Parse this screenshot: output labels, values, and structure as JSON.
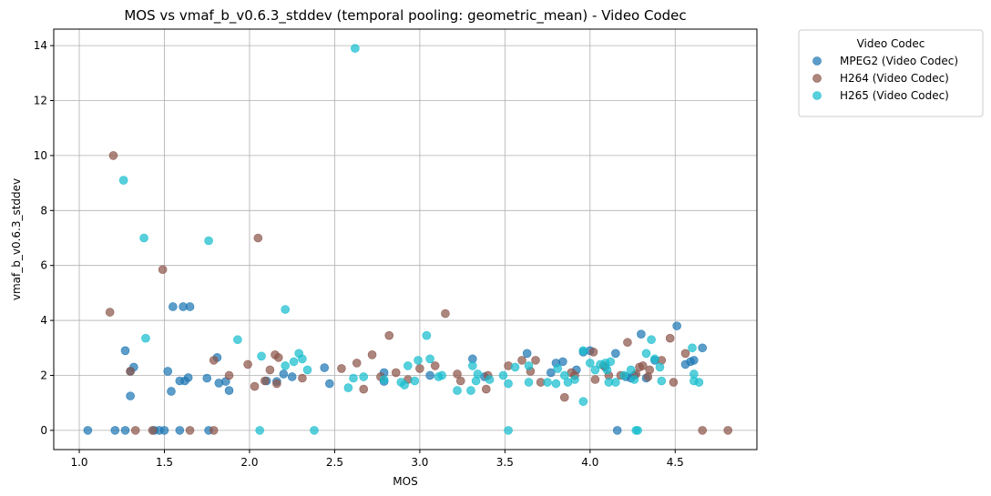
{
  "chart_data": {
    "type": "scatter",
    "title": "MOS vs vmaf_b_v0.6.3_stddev (temporal pooling: geometric_mean) - Video Codec",
    "xlabel": "MOS",
    "ylabel": "vmaf_b_v0.6.3_stddev",
    "xlim": [
      0.85,
      4.98
    ],
    "ylim": [
      -0.7,
      14.6
    ],
    "xticks": [
      1.0,
      1.5,
      2.0,
      2.5,
      3.0,
      3.5,
      4.0,
      4.5
    ],
    "xtick_labels": [
      "1.0",
      "1.5",
      "2.0",
      "2.5",
      "3.0",
      "3.5",
      "4.0",
      "4.5"
    ],
    "yticks": [
      0,
      2,
      4,
      6,
      8,
      10,
      12,
      14
    ],
    "ytick_labels": [
      "0",
      "2",
      "4",
      "6",
      "8",
      "10",
      "12",
      "14"
    ],
    "grid": true,
    "legend": {
      "title": "Video Codec",
      "placement": "outside-top-right"
    },
    "series": [
      {
        "name": "MPEG2 (Video Codec)",
        "color": "#1f77b4",
        "points": [
          [
            1.05,
            0.0
          ],
          [
            1.21,
            0.0
          ],
          [
            1.27,
            0.0
          ],
          [
            1.27,
            2.9
          ],
          [
            1.3,
            1.25
          ],
          [
            1.32,
            2.3
          ],
          [
            1.3,
            2.15
          ],
          [
            1.44,
            0.0
          ],
          [
            1.47,
            0.0
          ],
          [
            1.5,
            0.0
          ],
          [
            1.52,
            2.15
          ],
          [
            1.54,
            1.42
          ],
          [
            1.55,
            4.5
          ],
          [
            1.59,
            1.8
          ],
          [
            1.59,
            0.0
          ],
          [
            1.61,
            4.5
          ],
          [
            1.62,
            1.8
          ],
          [
            1.65,
            4.5
          ],
          [
            1.64,
            1.92
          ],
          [
            1.75,
            1.9
          ],
          [
            1.76,
            0.0
          ],
          [
            1.81,
            2.65
          ],
          [
            1.82,
            1.72
          ],
          [
            1.86,
            1.78
          ],
          [
            1.88,
            1.45
          ],
          [
            2.1,
            1.8
          ],
          [
            2.16,
            1.78
          ],
          [
            2.2,
            2.05
          ],
          [
            2.25,
            1.95
          ],
          [
            2.44,
            2.28
          ],
          [
            2.47,
            1.7
          ],
          [
            2.79,
            1.78
          ],
          [
            2.79,
            2.1
          ],
          [
            3.06,
            2.0
          ],
          [
            3.31,
            2.6
          ],
          [
            3.38,
            1.95
          ],
          [
            3.63,
            2.8
          ],
          [
            3.77,
            2.1
          ],
          [
            3.8,
            2.45
          ],
          [
            3.84,
            2.5
          ],
          [
            3.92,
            2.2
          ],
          [
            3.96,
            2.85
          ],
          [
            4.0,
            2.9
          ],
          [
            4.09,
            2.3
          ],
          [
            4.15,
            2.8
          ],
          [
            4.16,
            0.0
          ],
          [
            4.21,
            1.95
          ],
          [
            4.26,
            2.0
          ],
          [
            4.3,
            3.5
          ],
          [
            4.33,
            1.9
          ],
          [
            4.38,
            2.55
          ],
          [
            4.51,
            3.8
          ],
          [
            4.56,
            2.4
          ],
          [
            4.59,
            2.5
          ],
          [
            4.61,
            2.55
          ],
          [
            4.66,
            3.0
          ],
          [
            4.24,
            1.9
          ]
        ]
      },
      {
        "name": "H264 (Video Codec)",
        "color": "#8c564b",
        "points": [
          [
            1.18,
            4.3
          ],
          [
            1.2,
            10.0
          ],
          [
            1.3,
            2.15
          ],
          [
            1.33,
            0.0
          ],
          [
            1.43,
            0.0
          ],
          [
            1.49,
            5.85
          ],
          [
            1.65,
            0.0
          ],
          [
            1.79,
            2.55
          ],
          [
            1.79,
            0.0
          ],
          [
            1.88,
            2.0
          ],
          [
            1.99,
            2.4
          ],
          [
            2.03,
            1.6
          ],
          [
            2.05,
            7.0
          ],
          [
            2.09,
            1.8
          ],
          [
            2.12,
            2.2
          ],
          [
            2.15,
            2.75
          ],
          [
            2.17,
            2.65
          ],
          [
            2.16,
            1.7
          ],
          [
            2.31,
            1.9
          ],
          [
            2.54,
            2.25
          ],
          [
            2.63,
            2.45
          ],
          [
            2.67,
            1.5
          ],
          [
            2.72,
            2.75
          ],
          [
            2.77,
            1.95
          ],
          [
            2.82,
            3.45
          ],
          [
            2.86,
            2.1
          ],
          [
            2.93,
            1.85
          ],
          [
            3.0,
            2.25
          ],
          [
            3.09,
            2.35
          ],
          [
            3.15,
            4.25
          ],
          [
            3.22,
            2.05
          ],
          [
            3.24,
            1.8
          ],
          [
            3.4,
            2.0
          ],
          [
            3.39,
            1.5
          ],
          [
            3.52,
            2.35
          ],
          [
            3.6,
            2.55
          ],
          [
            3.65,
            2.15
          ],
          [
            3.68,
            2.55
          ],
          [
            3.71,
            1.75
          ],
          [
            3.85,
            1.2
          ],
          [
            3.89,
            2.1
          ],
          [
            3.91,
            2.0
          ],
          [
            4.02,
            2.85
          ],
          [
            4.03,
            1.85
          ],
          [
            4.08,
            2.35
          ],
          [
            4.11,
            2.0
          ],
          [
            4.18,
            2.0
          ],
          [
            4.22,
            3.2
          ],
          [
            4.27,
            2.05
          ],
          [
            4.29,
            2.3
          ],
          [
            4.31,
            2.35
          ],
          [
            4.34,
            1.95
          ],
          [
            4.42,
            2.55
          ],
          [
            4.47,
            3.35
          ],
          [
            4.49,
            1.75
          ],
          [
            4.56,
            2.8
          ],
          [
            4.66,
            0.0
          ],
          [
            4.81,
            0.0
          ],
          [
            4.35,
            2.2
          ]
        ]
      },
      {
        "name": "H265 (Video Codec)",
        "color": "#17becf",
        "points": [
          [
            1.26,
            9.1
          ],
          [
            1.38,
            7.0
          ],
          [
            1.39,
            3.35
          ],
          [
            1.76,
            6.9
          ],
          [
            1.93,
            3.3
          ],
          [
            2.06,
            0.0
          ],
          [
            2.07,
            2.7
          ],
          [
            2.21,
            4.4
          ],
          [
            2.21,
            2.35
          ],
          [
            2.26,
            2.5
          ],
          [
            2.29,
            2.8
          ],
          [
            2.31,
            2.6
          ],
          [
            2.34,
            2.2
          ],
          [
            2.38,
            0.0
          ],
          [
            2.58,
            1.55
          ],
          [
            2.61,
            1.9
          ],
          [
            2.62,
            13.9
          ],
          [
            2.67,
            1.95
          ],
          [
            2.79,
            1.85
          ],
          [
            2.89,
            1.75
          ],
          [
            2.91,
            1.65
          ],
          [
            2.93,
            2.35
          ],
          [
            2.97,
            1.8
          ],
          [
            2.99,
            2.55
          ],
          [
            3.04,
            3.45
          ],
          [
            3.06,
            2.6
          ],
          [
            3.11,
            1.95
          ],
          [
            3.13,
            2.0
          ],
          [
            3.22,
            1.45
          ],
          [
            3.3,
            1.45
          ],
          [
            3.31,
            2.35
          ],
          [
            3.33,
            1.8
          ],
          [
            3.34,
            2.05
          ],
          [
            3.41,
            1.85
          ],
          [
            3.49,
            2.0
          ],
          [
            3.52,
            1.7
          ],
          [
            3.52,
            0.0
          ],
          [
            3.56,
            2.3
          ],
          [
            3.64,
            2.35
          ],
          [
            3.64,
            1.75
          ],
          [
            3.75,
            1.75
          ],
          [
            3.8,
            1.7
          ],
          [
            3.81,
            2.25
          ],
          [
            3.85,
            2.0
          ],
          [
            3.87,
            1.75
          ],
          [
            3.91,
            1.85
          ],
          [
            3.96,
            2.9
          ],
          [
            3.96,
            1.05
          ],
          [
            4.0,
            2.45
          ],
          [
            4.03,
            2.2
          ],
          [
            4.09,
            2.45
          ],
          [
            4.11,
            1.75
          ],
          [
            4.12,
            2.5
          ],
          [
            4.15,
            1.75
          ],
          [
            4.2,
            2.0
          ],
          [
            4.24,
            2.2
          ],
          [
            4.26,
            1.85
          ],
          [
            4.27,
            0.0
          ],
          [
            4.28,
            0.0
          ],
          [
            4.33,
            2.8
          ],
          [
            4.36,
            3.3
          ],
          [
            4.38,
            2.6
          ],
          [
            4.41,
            2.3
          ],
          [
            4.42,
            1.8
          ],
          [
            4.6,
            3.0
          ],
          [
            4.61,
            2.05
          ],
          [
            4.61,
            1.8
          ],
          [
            4.64,
            1.75
          ],
          [
            4.06,
            2.4
          ],
          [
            4.1,
            2.2
          ]
        ]
      }
    ]
  }
}
